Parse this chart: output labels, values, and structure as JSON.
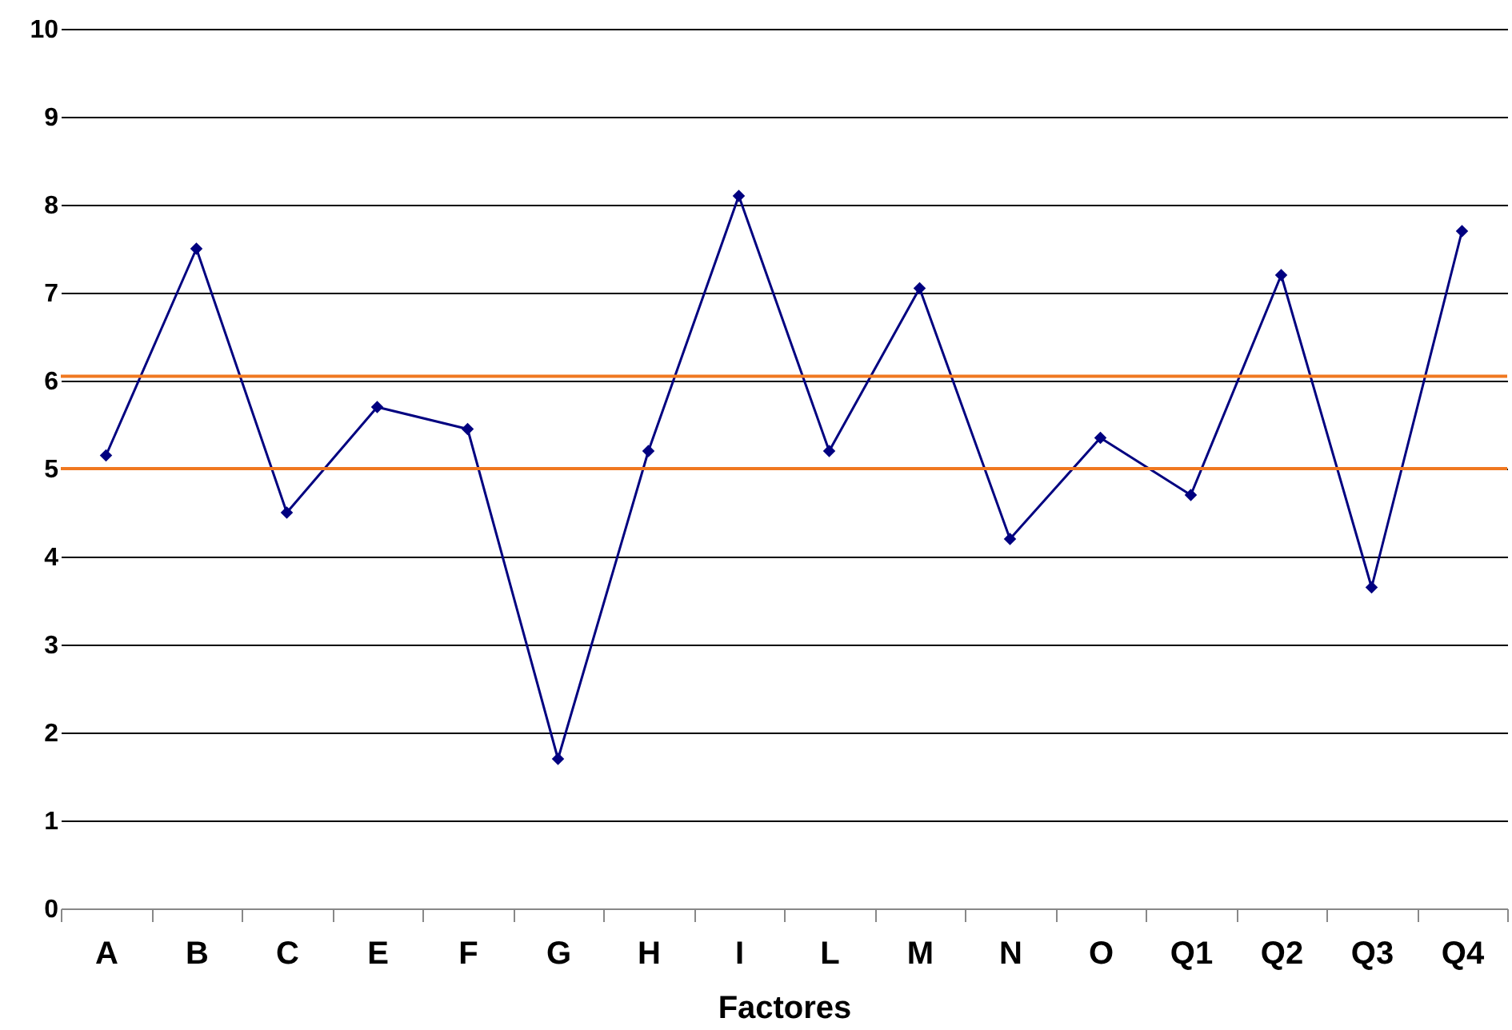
{
  "chart_data": {
    "type": "line",
    "xlabel": "Factores",
    "categories": [
      "A",
      "B",
      "C",
      "E",
      "F",
      "G",
      "H",
      "I",
      "L",
      "M",
      "N",
      "O",
      "Q1",
      "Q2",
      "Q3",
      "Q4"
    ],
    "series": [
      {
        "color": "#000080",
        "values": [
          5.15,
          7.5,
          4.5,
          5.7,
          5.45,
          1.7,
          5.2,
          8.1,
          5.2,
          7.05,
          4.2,
          5.35,
          4.7,
          7.2,
          3.65,
          7.7
        ]
      }
    ],
    "ylim": [
      0,
      10
    ],
    "yticks": [
      0,
      1,
      2,
      3,
      4,
      5,
      6,
      7,
      8,
      9,
      10
    ],
    "grid": "y",
    "marker": "diamond",
    "ref_lines": [
      {
        "axis": "y",
        "value": 6.05,
        "color": "#f07820"
      },
      {
        "axis": "y",
        "value": 5.0,
        "color": "#f07820"
      }
    ]
  }
}
